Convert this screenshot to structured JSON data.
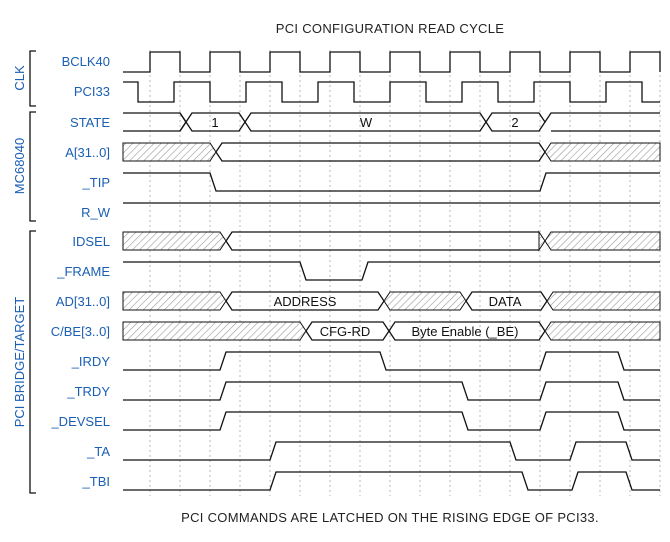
{
  "title": "PCI CONFIGURATION READ CYCLE",
  "footer": "PCI COMMANDS ARE LATCHED ON THE RISING EDGE OF PCI33.",
  "groups": {
    "clk": "CLK",
    "mc68040": "MC68040",
    "pci": "PCI BRIDGE/TARGET"
  },
  "signals": {
    "bclk40": "BCLK40",
    "pci33": "PCI33",
    "state": "STATE",
    "addr": "A[31..0]",
    "tip": "_TIP",
    "rw": "R_W",
    "idsel": "IDSEL",
    "frame": "_FRAME",
    "ad": "AD[31..0]",
    "cbe": "C/BE[3..0]",
    "irdy": "_IRDY",
    "trdy": "_TRDY",
    "devsel": "_DEVSEL",
    "ta": "_TA",
    "tbi": "_TBI"
  },
  "bus_values": {
    "state_1": "1",
    "state_w": "W",
    "state_2": "2",
    "ad_address": "ADDRESS",
    "ad_data": "DATA",
    "cbe_cmd": "CFG-RD",
    "cbe_be": "Byte Enable (_BE)"
  },
  "colors": {
    "label": "#1a5fb4",
    "wave": "#111111",
    "grid": "#b8b8b8"
  }
}
